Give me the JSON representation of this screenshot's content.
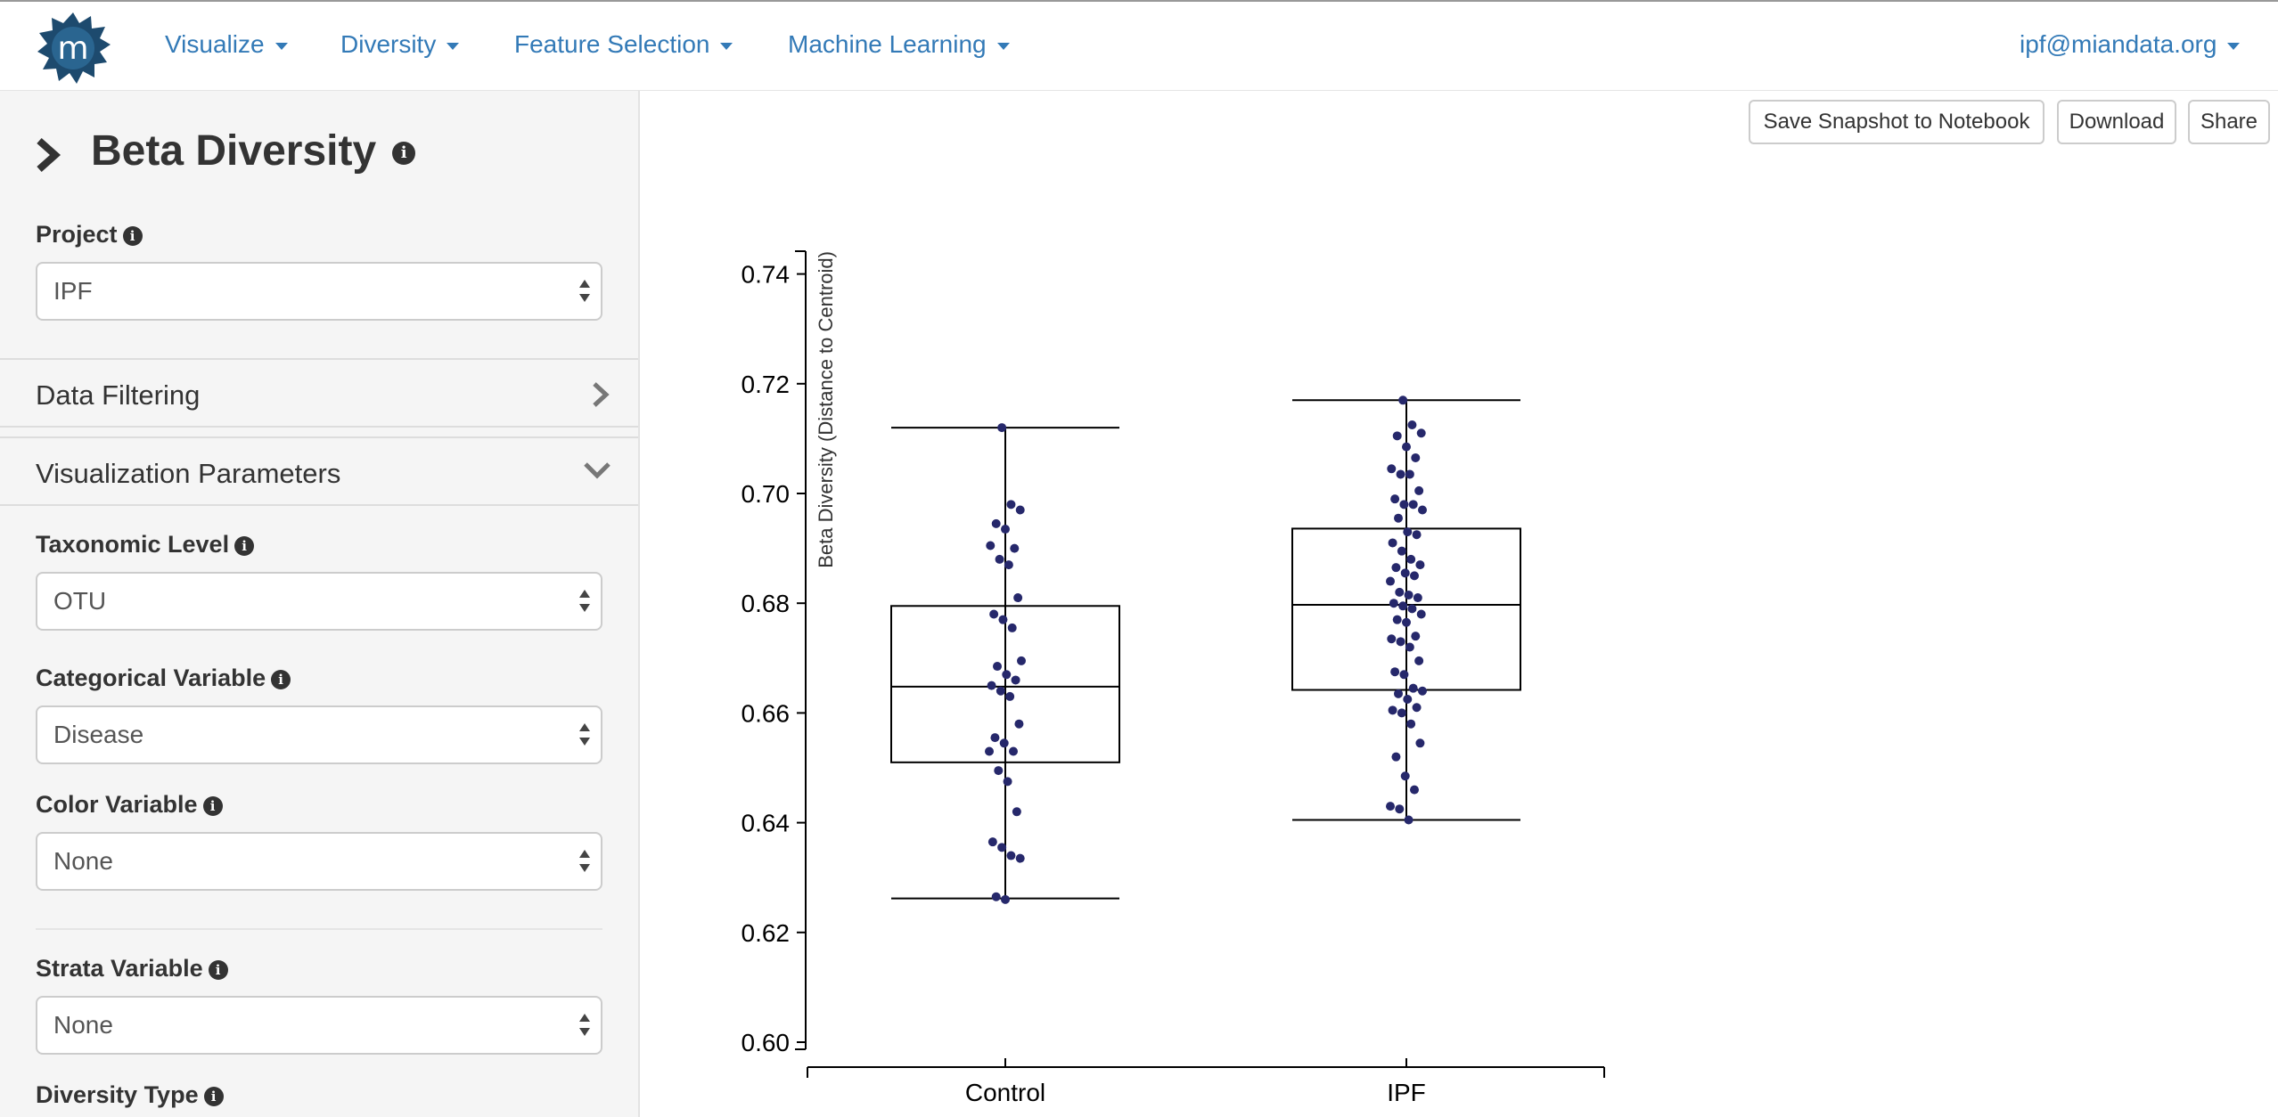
{
  "nav": {
    "items": [
      "Visualize",
      "Diversity",
      "Feature Selection",
      "Machine Learning"
    ],
    "user": "ipf@miandata.org",
    "logo_letter": "m"
  },
  "sidebar": {
    "title": "Beta Diversity",
    "project_label": "Project",
    "project_value": "IPF",
    "data_filtering": "Data Filtering",
    "viz_params": "Visualization Parameters",
    "taxonomic_label": "Taxonomic Level",
    "taxonomic_value": "OTU",
    "categorical_label": "Categorical Variable",
    "categorical_value": "Disease",
    "color_label": "Color Variable",
    "color_value": "None",
    "strata_label": "Strata Variable",
    "strata_value": "None",
    "diversity_type_label": "Diversity Type"
  },
  "toolbar": {
    "snapshot": "Save Snapshot to Notebook",
    "download": "Download",
    "share": "Share"
  },
  "colors": {
    "link": "#337ab7",
    "point": "#26286b",
    "logo": "#1d4a6e"
  },
  "chart_data": {
    "type": "box",
    "ylabel": "Beta Diversity (Distance to Centroid)",
    "ylim": [
      0.6,
      0.745
    ],
    "yticks": [
      0.6,
      0.62,
      0.64,
      0.66,
      0.68,
      0.7,
      0.72,
      0.74
    ],
    "ytick_labels": [
      "0.60",
      "0.62",
      "0.64",
      "0.66",
      "0.68",
      "0.70",
      "0.72",
      "0.74"
    ],
    "categories": [
      "Control",
      "IPF"
    ],
    "boxes": [
      {
        "name": "Control",
        "min": 0.6262,
        "q1": 0.651,
        "median": 0.6648,
        "q3": 0.6795,
        "max": 0.712
      },
      {
        "name": "IPF",
        "min": 0.6405,
        "q1": 0.6642,
        "median": 0.6797,
        "q3": 0.6936,
        "max": 0.717
      }
    ],
    "points": [
      {
        "name": "Control",
        "values": [
          0.712,
          0.698,
          0.697,
          0.6945,
          0.6935,
          0.69,
          0.6905,
          0.688,
          0.687,
          0.681,
          0.678,
          0.677,
          0.6755,
          0.6695,
          0.6685,
          0.667,
          0.666,
          0.665,
          0.664,
          0.663,
          0.658,
          0.6555,
          0.6545,
          0.653,
          0.653,
          0.6495,
          0.6475,
          0.642,
          0.6365,
          0.6355,
          0.634,
          0.6335,
          0.6265,
          0.626
        ]
      },
      {
        "name": "IPF",
        "values": [
          0.717,
          0.7125,
          0.711,
          0.7105,
          0.7085,
          0.7065,
          0.7045,
          0.7035,
          0.7035,
          0.7005,
          0.699,
          0.698,
          0.698,
          0.697,
          0.6955,
          0.693,
          0.6925,
          0.691,
          0.6895,
          0.688,
          0.687,
          0.6865,
          0.6855,
          0.685,
          0.684,
          0.682,
          0.6815,
          0.681,
          0.68,
          0.6795,
          0.679,
          0.678,
          0.677,
          0.6765,
          0.674,
          0.6735,
          0.673,
          0.672,
          0.6695,
          0.6675,
          0.667,
          0.6645,
          0.664,
          0.6635,
          0.6625,
          0.661,
          0.6605,
          0.66,
          0.658,
          0.6545,
          0.652,
          0.6485,
          0.646,
          0.643,
          0.6425,
          0.6405
        ]
      }
    ],
    "grid": false,
    "legend": "none"
  }
}
